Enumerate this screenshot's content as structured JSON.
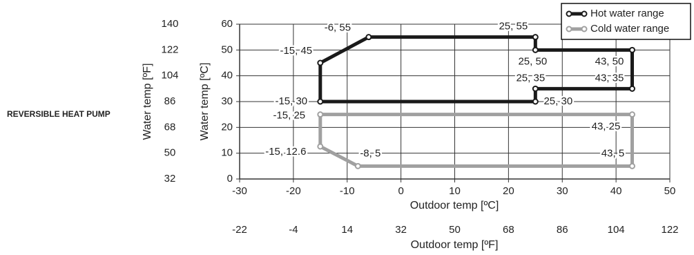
{
  "side_label": "REVERSIBLE HEAT PUMP",
  "chart_data": {
    "type": "line",
    "xlabel": "Outdoor temp [ºC]",
    "ylabel": "Water temp [ºC]",
    "x2label": "Outdoor temp [ºF]",
    "y2label": "Water temp [ºF]",
    "xlim": [
      -30,
      50
    ],
    "xticks": [
      -30,
      -20,
      -10,
      0,
      10,
      20,
      30,
      40,
      50
    ],
    "ylim": [
      0,
      60
    ],
    "yticks": [
      0,
      10,
      20,
      30,
      40,
      50,
      60
    ],
    "x2lim": [
      -22,
      122
    ],
    "x2ticks": [
      -22,
      -4,
      14,
      32,
      50,
      68,
      86,
      104,
      122
    ],
    "y2lim": [
      32,
      140
    ],
    "y2ticks": [
      32,
      50,
      68,
      86,
      104,
      122,
      140
    ],
    "grid": true,
    "legend": "upper right",
    "closed": true,
    "series": [
      {
        "name": "Hot water range",
        "color": "#1a1a1a",
        "x": [
          -15,
          -15,
          -6,
          25,
          25,
          43,
          43,
          25,
          25
        ],
        "y": [
          30,
          45,
          55,
          55,
          50,
          50,
          35,
          35,
          30
        ],
        "labels": [
          "-15, 30",
          "-15, 45",
          "-6, 55",
          "25, 55",
          "25, 50",
          "43, 50",
          "43, 35",
          "25, 35",
          "25, 30"
        ]
      },
      {
        "name": "Cold water range",
        "color": "#a0a0a0",
        "x": [
          -15,
          43,
          43,
          -8,
          -15
        ],
        "y": [
          25,
          25,
          5,
          5,
          12.6
        ],
        "labels": [
          "-15, 25",
          "43, 25",
          "43, 5",
          "-8, 5",
          "-15, 12.6"
        ]
      }
    ]
  }
}
